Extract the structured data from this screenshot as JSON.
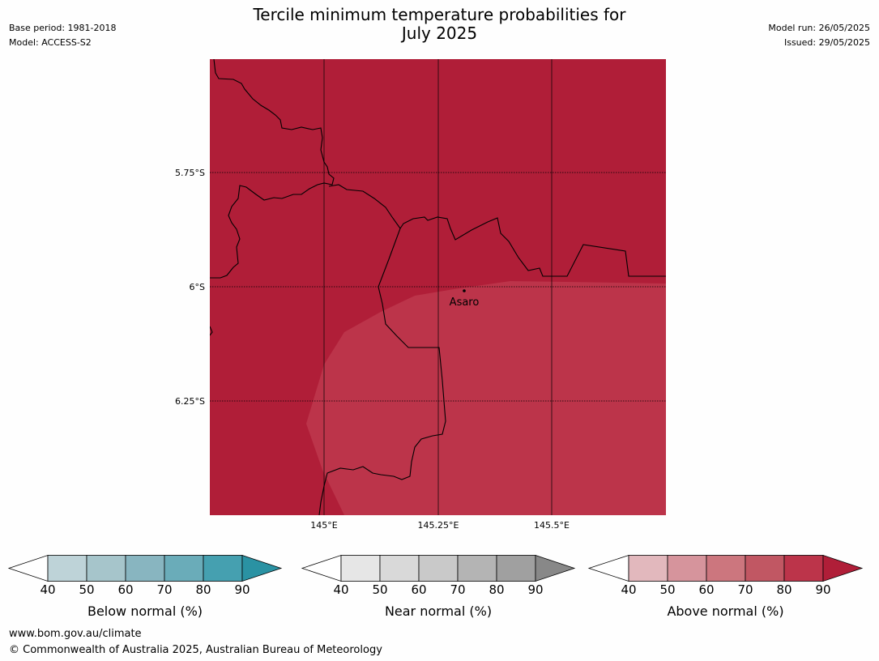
{
  "title_line1": "Tercile minimum temperature probabilities for",
  "title_line2": "July 2025",
  "meta_left": {
    "base_period": "Base period: 1981-2018",
    "model": "Model: ACCESS-S2"
  },
  "meta_right": {
    "model_run": "Model run: 26/05/2025",
    "issued": "Issued: 29/05/2025"
  },
  "map": {
    "lat_labels": [
      "5.75°S",
      "6°S",
      "6.25°S"
    ],
    "lon_labels": [
      "145°E",
      "145.25°E",
      "145.5°E"
    ],
    "place_name": "Asaro",
    "colors": {
      "above_90": "#b01e38",
      "above_80": "#bc344a",
      "border": "#000000",
      "grid": "#000000"
    }
  },
  "colorbars": [
    {
      "label": "Below normal (%)",
      "ticks": [
        "40",
        "50",
        "60",
        "70",
        "80",
        "90"
      ],
      "colors": [
        "#ffffff",
        "#bed3d8",
        "#a6c5cb",
        "#88b5c0",
        "#6aacb9",
        "#45a0b0",
        "#2a92a3"
      ]
    },
    {
      "label": "Near normal (%)",
      "ticks": [
        "40",
        "50",
        "60",
        "70",
        "80",
        "90"
      ],
      "colors": [
        "#ffffff",
        "#e6e6e6",
        "#d9d9d9",
        "#c9c9c9",
        "#b4b4b4",
        "#a0a0a0",
        "#888888"
      ]
    },
    {
      "label": "Above normal (%)",
      "ticks": [
        "40",
        "50",
        "60",
        "70",
        "80",
        "90"
      ],
      "colors": [
        "#ffffff",
        "#e2b8bd",
        "#d6949c",
        "#cc767e",
        "#c15763",
        "#bc344a",
        "#b01e38"
      ]
    }
  ],
  "footer": {
    "url": "www.bom.gov.au/climate",
    "copyright": "© Commonwealth of Australia 2025, Australian Bureau of Meteorology"
  }
}
